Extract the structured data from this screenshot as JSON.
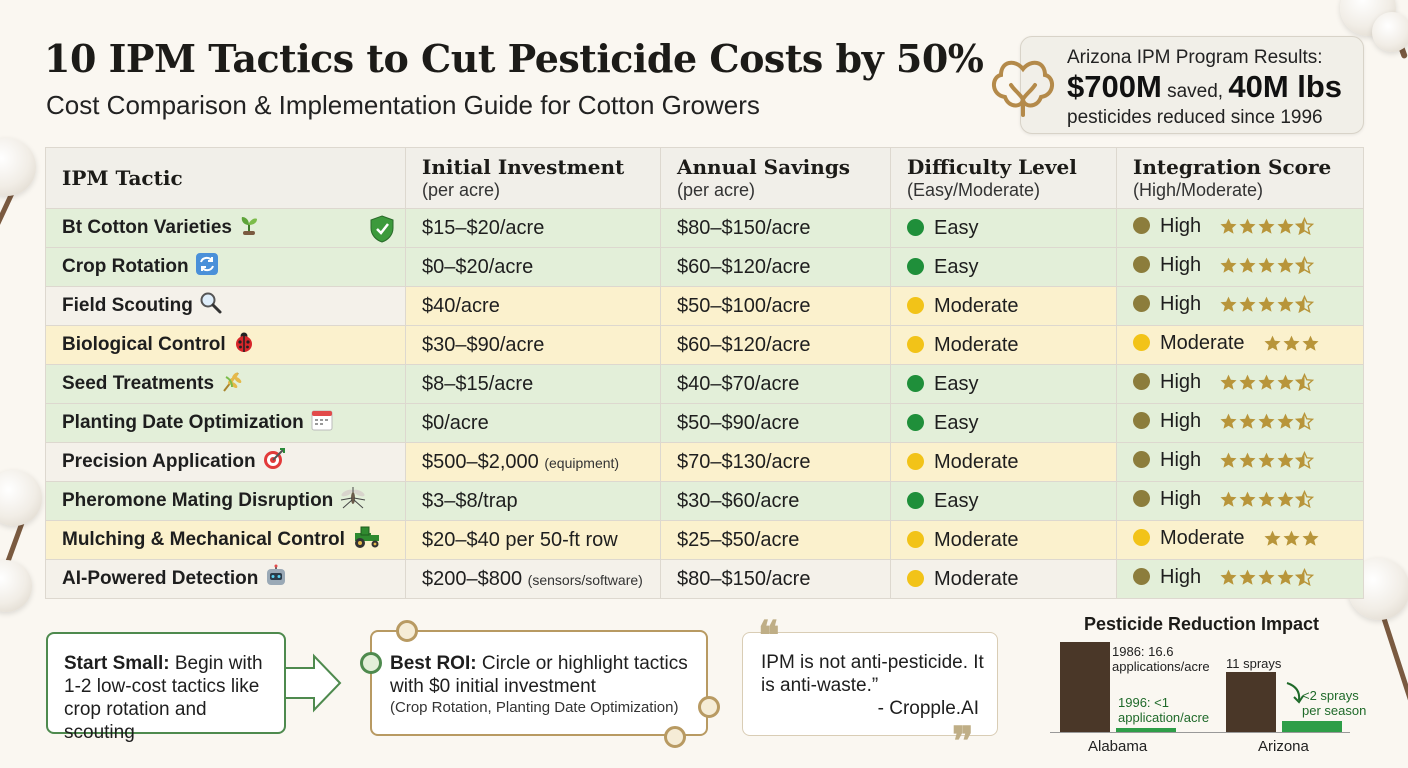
{
  "header": {
    "title": "10 IPM Tactics to Cut Pesticide Costs by 50%",
    "subtitle": "Cost Comparison & Implementation Guide for Cotton Growers"
  },
  "results": {
    "line1": "Arizona IPM Program Results:",
    "saved_value": "$700M",
    "saved_word": " saved, ",
    "lbs_value": "40M lbs",
    "line3": "pesticides reduced since 1996",
    "icon": "cotton-boll-icon"
  },
  "table": {
    "columns": [
      {
        "title": "IPM Tactic",
        "sub": ""
      },
      {
        "title": "Initial Investment",
        "sub": "(per acre)"
      },
      {
        "title": "Annual Savings",
        "sub": "(per acre)"
      },
      {
        "title": "Difficulty Level",
        "sub": "(Easy/Moderate)"
      },
      {
        "title": "Integration Score",
        "sub": "(High/Moderate)"
      }
    ],
    "rows": [
      {
        "tactic": "Bt Cotton Varieties",
        "icon": "sprout-icon",
        "investment": "$15–$20/acre",
        "investment_note": "",
        "savings": "$80–$150/acre",
        "difficulty": "Easy",
        "integration": "High",
        "stars": 4.5,
        "colors": [
          "g",
          "g",
          "g",
          "g",
          "g"
        ]
      },
      {
        "tactic": "Crop Rotation",
        "icon": "rotate-icon",
        "investment": "$0–$20/acre",
        "investment_note": "",
        "savings": "$60–$120/acre",
        "difficulty": "Easy",
        "integration": "High",
        "stars": 4.5,
        "colors": [
          "g",
          "g",
          "g",
          "g",
          "g"
        ]
      },
      {
        "tactic": "Field Scouting",
        "icon": "magnifier-icon",
        "investment": "$40/acre",
        "investment_note": "",
        "savings": "$50–$100/acre",
        "difficulty": "Moderate",
        "integration": "High",
        "stars": 4.5,
        "colors": [
          "w",
          "y",
          "y",
          "y",
          "g"
        ]
      },
      {
        "tactic": "Biological Control",
        "icon": "ladybug-icon",
        "investment": "$30–$90/acre",
        "investment_note": "",
        "savings": "$60–$120/acre",
        "difficulty": "Moderate",
        "integration": "Moderate",
        "stars": 3,
        "colors": [
          "y",
          "y",
          "y",
          "y",
          "y"
        ]
      },
      {
        "tactic": "Seed Treatments",
        "icon": "wheat-icon",
        "investment": "$8–$15/acre",
        "investment_note": "",
        "savings": "$40–$70/acre",
        "difficulty": "Easy",
        "integration": "High",
        "stars": 4.5,
        "colors": [
          "g",
          "g",
          "g",
          "g",
          "g"
        ]
      },
      {
        "tactic": "Planting Date Optimization",
        "icon": "calendar-icon",
        "investment": "$0/acre",
        "investment_note": "",
        "savings": "$50–$90/acre",
        "difficulty": "Easy",
        "integration": "High",
        "stars": 4.5,
        "colors": [
          "g",
          "g",
          "g",
          "g",
          "g"
        ]
      },
      {
        "tactic": "Precision Application",
        "icon": "target-icon",
        "investment": "$500–$2,000",
        "investment_note": "(equipment)",
        "savings": "$70–$130/acre",
        "difficulty": "Moderate",
        "integration": "High",
        "stars": 4.5,
        "colors": [
          "w",
          "y",
          "y",
          "y",
          "g"
        ]
      },
      {
        "tactic": "Pheromone Mating Disruption",
        "icon": "mosquito-icon",
        "investment": "$3–$8/trap",
        "investment_note": "",
        "savings": "$30–$60/acre",
        "difficulty": "Easy",
        "integration": "High",
        "stars": 4.5,
        "colors": [
          "g",
          "g",
          "g",
          "g",
          "g"
        ]
      },
      {
        "tactic": "Mulching & Mechanical Control",
        "icon": "tractor-icon",
        "investment": "$20–$40 per 50-ft row",
        "investment_note": "",
        "savings": "$25–$50/acre",
        "difficulty": "Moderate",
        "integration": "Moderate",
        "stars": 3,
        "colors": [
          "y",
          "y",
          "y",
          "y",
          "y"
        ]
      },
      {
        "tactic": "AI-Powered Detection",
        "icon": "robot-icon",
        "investment": "$200–$800",
        "investment_note": "(sensors/software)",
        "savings": "$80–$150/acre",
        "difficulty": "Moderate",
        "integration": "High",
        "stars": 4.5,
        "colors": [
          "w",
          "w",
          "w",
          "w",
          "g"
        ]
      }
    ],
    "difficulty_colors": {
      "Easy": "#1f8f3a",
      "Moderate": "#f2c318"
    },
    "integration_colors": {
      "High": "#8c7d3c",
      "Moderate": "#f2c318"
    },
    "star_color": "#b8953a"
  },
  "callouts": {
    "start_small": {
      "bold": "Start Small:",
      "text": " Begin with 1-2 low-cost tactics like crop rotation and scouting"
    },
    "best_roi": {
      "bold": "Best ROI:",
      "text": " Circle or highlight tactics with $0 initial investment",
      "sub": "(Crop Rotation, Planting Date Optimization)"
    },
    "quote": {
      "text": "IPM is not anti-pesticide. It is anti-waste.”",
      "author": "- Cropple.AI"
    }
  },
  "chart_data": {
    "type": "bar",
    "title": "Pesticide Reduction Impact",
    "categories": [
      "Alabama",
      "Arizona"
    ],
    "groups": [
      {
        "category": "Alabama",
        "bars": [
          {
            "label": "1986: 16.6 applications/acre",
            "value": 16.6
          },
          {
            "label": "1996: <1 application/acre",
            "value": 0.8
          }
        ]
      },
      {
        "category": "Arizona",
        "bars": [
          {
            "label": "11 sprays",
            "value": 11
          },
          {
            "label": "<2 sprays per season",
            "value": 2
          }
        ]
      }
    ],
    "colors": [
      "#4a3728",
      "#2e9e48"
    ]
  }
}
